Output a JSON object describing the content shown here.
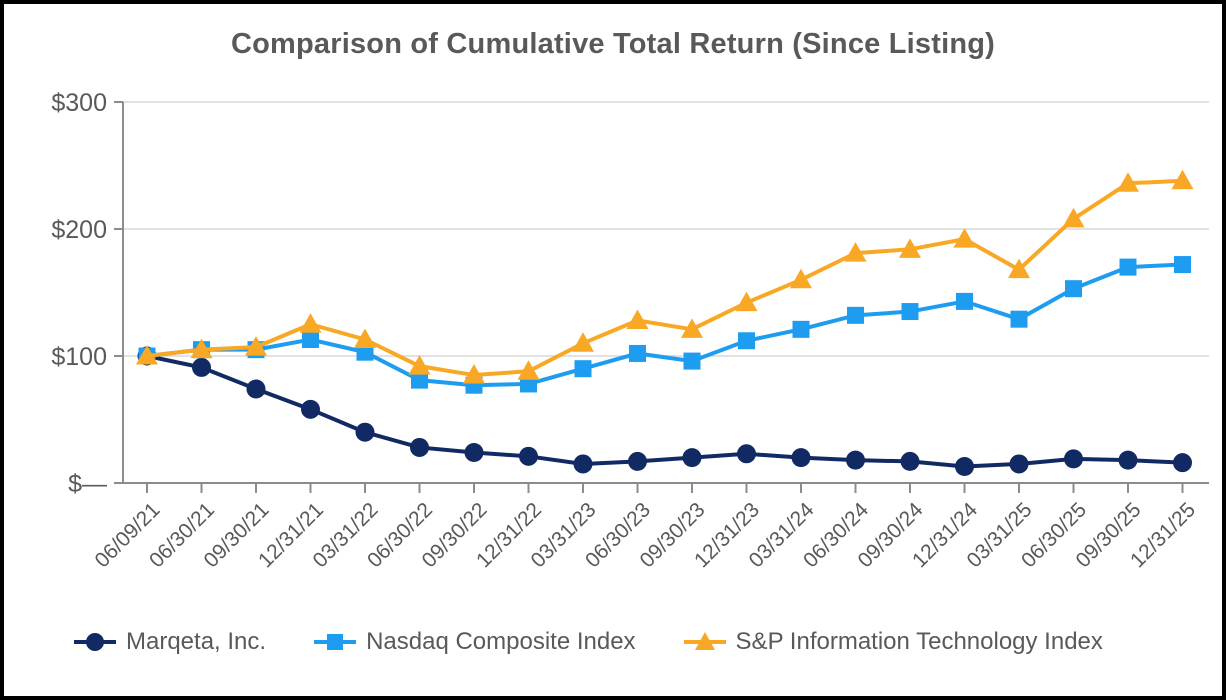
{
  "chart_data": {
    "type": "line",
    "title": "Comparison of Cumulative Total Return (Since Listing)",
    "xlabel": "",
    "ylabel": "",
    "ylim": [
      0,
      300
    ],
    "grid": true,
    "legend_position": "bottom",
    "categories": [
      "06/09/21",
      "06/30/21",
      "09/30/21",
      "12/31/21",
      "03/31/22",
      "06/30/22",
      "09/30/22",
      "12/31/22",
      "03/31/23",
      "06/30/23",
      "09/30/23",
      "12/31/23",
      "03/31/24",
      "06/30/24",
      "09/30/24",
      "12/31/24",
      "03/31/25",
      "06/30/25",
      "09/30/25",
      "12/31/25"
    ],
    "y_ticks": [
      {
        "value": 0,
        "label": "$—"
      },
      {
        "value": 100,
        "label": "$100"
      },
      {
        "value": 200,
        "label": "$200"
      },
      {
        "value": 300,
        "label": "$300"
      }
    ],
    "series": [
      {
        "name": "Marqeta, Inc.",
        "marker": "circle",
        "color": "#122a63",
        "values": [
          100,
          91,
          74,
          58,
          40,
          28,
          24,
          21,
          15,
          17,
          20,
          23,
          20,
          18,
          17,
          13,
          15,
          19,
          18,
          16
        ]
      },
      {
        "name": "Nasdaq Composite Index",
        "marker": "square",
        "color": "#1e9cf0",
        "values": [
          100,
          105,
          105,
          113,
          103,
          81,
          77,
          78,
          90,
          102,
          96,
          112,
          121,
          132,
          135,
          143,
          129,
          153,
          170,
          172
        ]
      },
      {
        "name": "S&P Information Technology Index",
        "marker": "triangle",
        "color": "#f9a825",
        "values": [
          100,
          105,
          107,
          125,
          113,
          92,
          85,
          88,
          110,
          128,
          121,
          142,
          160,
          181,
          184,
          192,
          168,
          208,
          236,
          238
        ]
      }
    ],
    "colors": {
      "text": "#595959",
      "axis": "#8c8c8c",
      "gridline": "#d9d9d9",
      "background": "#ffffff",
      "border": "#000000"
    }
  }
}
